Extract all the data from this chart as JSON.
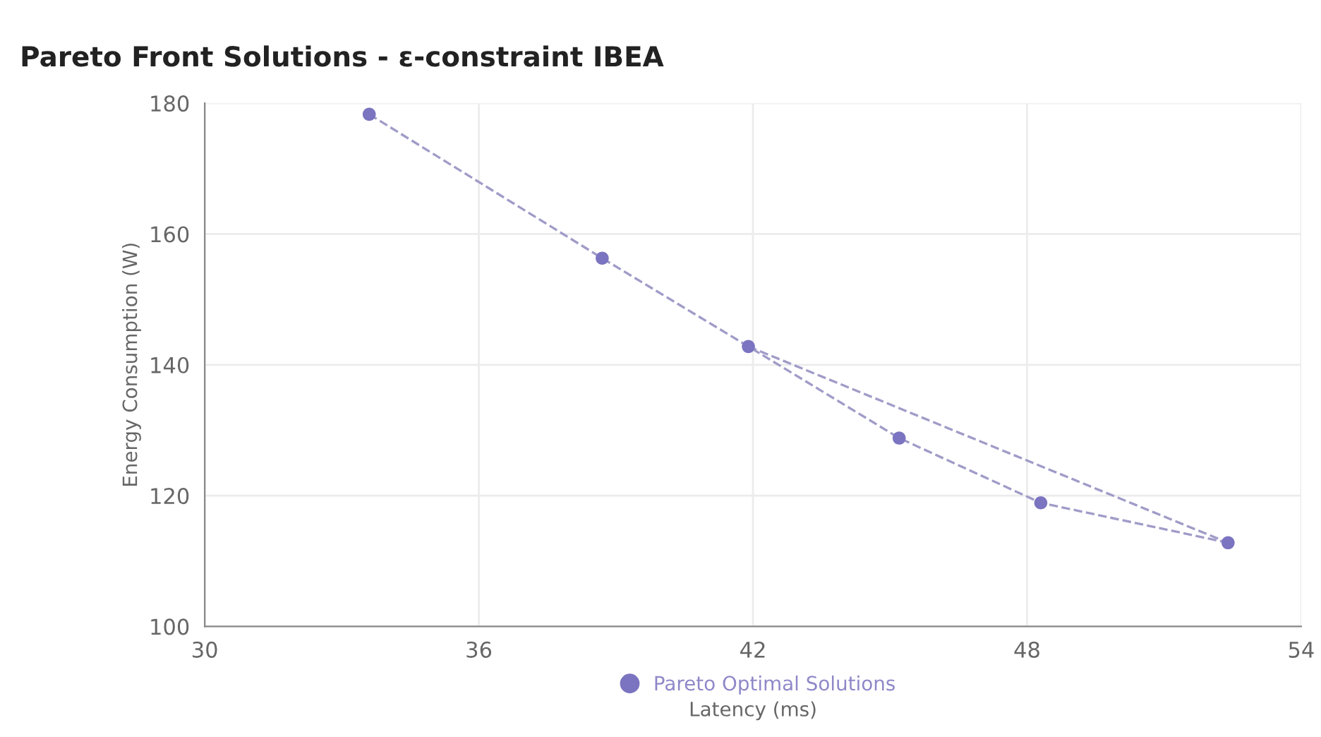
{
  "chart_data": {
    "type": "scatter",
    "title": "Pareto Front Solutions - ε-constraint IBEA",
    "xlabel": "Latency (ms)",
    "ylabel": "Energy Consumption (W)",
    "xlim": [
      30,
      54
    ],
    "xticks": [
      30,
      36,
      42,
      48,
      54
    ],
    "ylim": [
      100,
      180
    ],
    "yticks": [
      100,
      120,
      140,
      160,
      180
    ],
    "grid": true,
    "legend": "bottom",
    "marker": "circle",
    "series": [
      {
        "type": "line",
        "color": "#a09cc8",
        "line_style": "dashed",
        "marker": "none",
        "x": [
          33.6,
          38.7,
          41.9,
          45.2,
          48.3,
          52.4
        ],
        "values": [
          178.3,
          156.3,
          142.8,
          128.8,
          118.9,
          112.8
        ]
      },
      {
        "type": "line",
        "color": "#a09cc8",
        "line_style": "dashed",
        "marker": "none",
        "x": [
          41.9,
          52.4
        ],
        "values": [
          142.8,
          112.8
        ]
      },
      {
        "name": "Pareto Optimal Solutions",
        "color": "#7b74c0",
        "x": [
          33.6,
          38.7,
          41.9,
          45.2,
          48.3,
          52.4
        ],
        "values": [
          178.3,
          156.3,
          142.8,
          128.8,
          118.9,
          112.8
        ]
      }
    ]
  }
}
